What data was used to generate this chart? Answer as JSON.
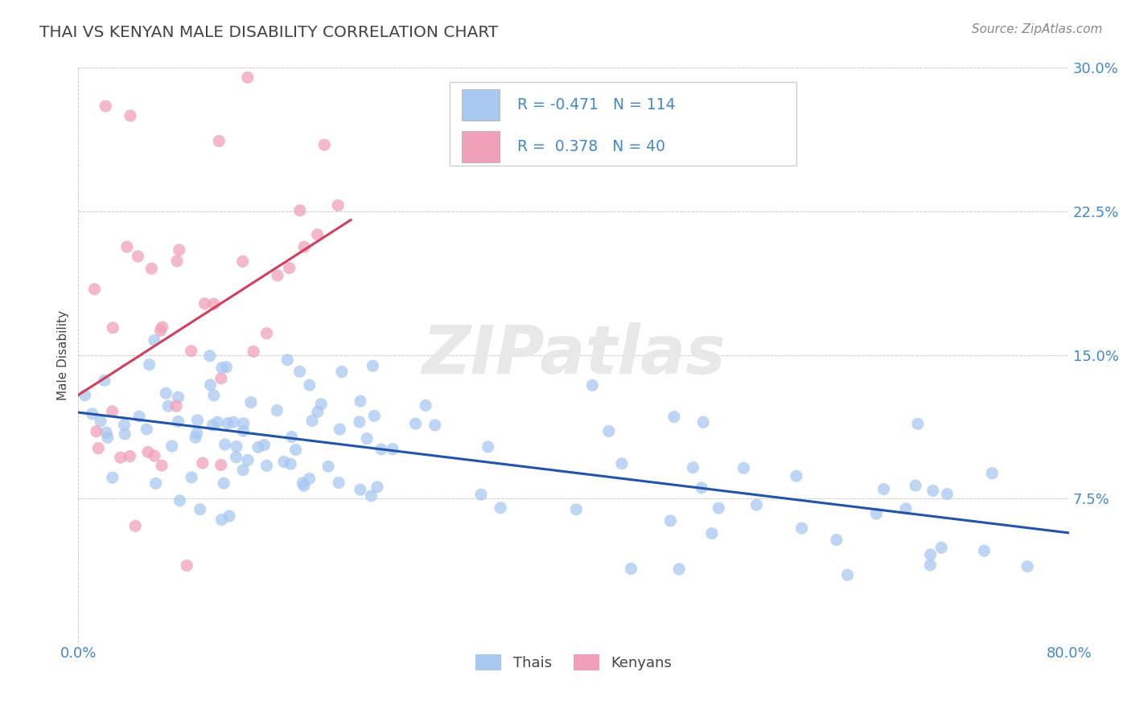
{
  "title": "THAI VS KENYAN MALE DISABILITY CORRELATION CHART",
  "source_text": "Source: ZipAtlas.com",
  "ylabel": "Male Disability",
  "xlim": [
    0.0,
    0.8
  ],
  "ylim": [
    0.0,
    0.3
  ],
  "ytick_vals": [
    0.075,
    0.15,
    0.225,
    0.3
  ],
  "ytick_labels": [
    "7.5%",
    "15.0%",
    "22.5%",
    "30.0%"
  ],
  "xtick_vals": [
    0.0,
    0.8
  ],
  "xtick_labels": [
    "0.0%",
    "80.0%"
  ],
  "thai_color": "#a8c8f0",
  "kenyan_color": "#f0a0b8",
  "thai_line_color": "#2255aa",
  "kenyan_line_color": "#d04060",
  "background_color": "#ffffff",
  "grid_color": "#cccccc",
  "label_color": "#4488cc",
  "title_color": "#444444",
  "R_thai": -0.471,
  "N_thai": 114,
  "R_kenyan": 0.378,
  "N_kenyan": 40,
  "watermark_color": "#e8e8e8",
  "legend_box_color": "#dddddd"
}
